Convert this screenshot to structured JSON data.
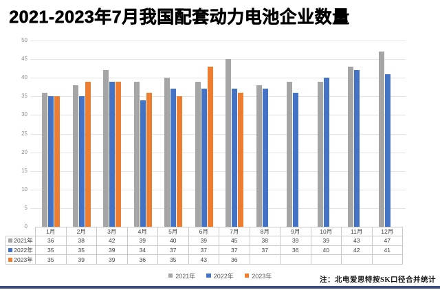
{
  "title": "2021-2023年7月我国配套动力电池企业数量",
  "note": "注：北电爱思特按SK口径合并统计",
  "chart_data": {
    "type": "bar",
    "title": "2021-2023年7月我国配套动力电池企业数量",
    "categories": [
      "1月",
      "2月",
      "3月",
      "4月",
      "5月",
      "6月",
      "7月",
      "8月",
      "9月",
      "10月",
      "11月",
      "12月"
    ],
    "series": [
      {
        "name": "2021年",
        "color": "#A5A5A5",
        "values": [
          36,
          38,
          42,
          39,
          40,
          39,
          45,
          38,
          39,
          39,
          43,
          47
        ]
      },
      {
        "name": "2022年",
        "color": "#4472C4",
        "values": [
          35,
          35,
          39,
          34,
          37,
          37,
          37,
          37,
          36,
          40,
          42,
          41
        ]
      },
      {
        "name": "2023年",
        "color": "#ED7D31",
        "values": [
          35,
          39,
          39,
          36,
          35,
          43,
          36,
          null,
          null,
          null,
          null,
          null
        ]
      }
    ],
    "ylim": [
      0,
      50
    ],
    "ytick_step": 5,
    "grid": true,
    "legend_position": "bottom",
    "data_table_shown": true
  },
  "colors": {
    "accent_bar": "#3E4C7C",
    "grid_line": "#E3E3E3",
    "table_border": "#C9C9C9",
    "axis_label": "#8C8C8C"
  }
}
